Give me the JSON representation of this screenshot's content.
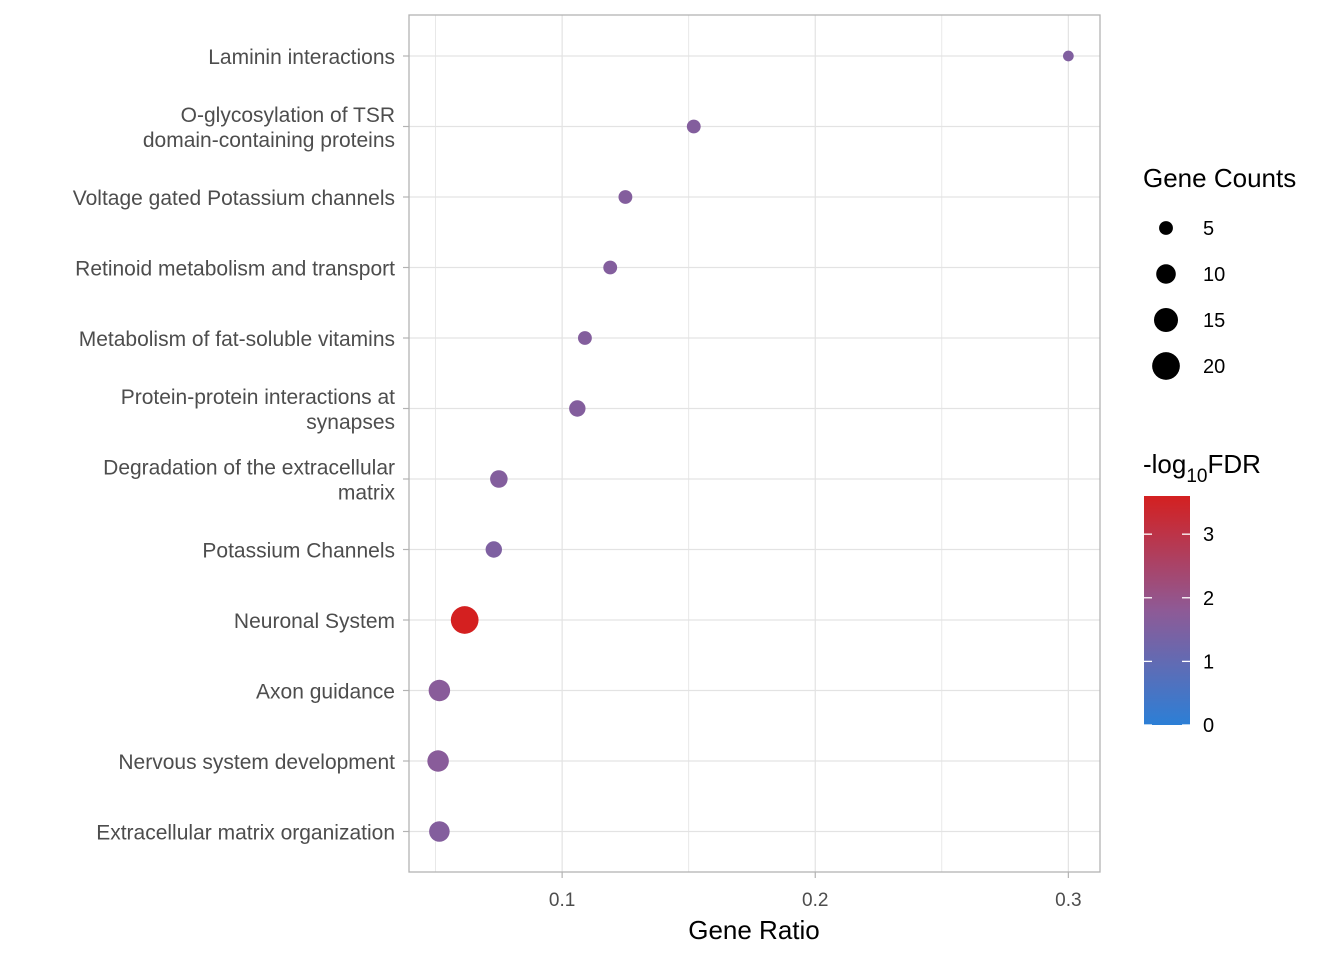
{
  "chart_data": {
    "type": "scatter",
    "subtype": "dot-plot",
    "xlabel": "Gene Ratio",
    "ylabel": "",
    "xlim": [
      0.0395,
      0.3125
    ],
    "x_ticks": [
      {
        "value": 0.1,
        "label": "0.1"
      },
      {
        "value": 0.2,
        "label": "0.2"
      },
      {
        "value": 0.3,
        "label": "0.3"
      }
    ],
    "x_minor_ticks": [
      0.05,
      0.15,
      0.25
    ],
    "grid": true,
    "categories": [
      {
        "lines": [
          "Laminin interactions"
        ],
        "gene_ratio": 0.3,
        "gene_count": 3,
        "neg_log10_fdr": 1.55
      },
      {
        "lines": [
          "O-glycosylation of TSR",
          "domain-containing proteins"
        ],
        "gene_ratio": 0.152,
        "gene_count": 5,
        "neg_log10_fdr": 1.6
      },
      {
        "lines": [
          "Voltage gated Potassium channels"
        ],
        "gene_ratio": 0.125,
        "gene_count": 5,
        "neg_log10_fdr": 1.6
      },
      {
        "lines": [
          "Retinoid metabolism and transport"
        ],
        "gene_ratio": 0.119,
        "gene_count": 5,
        "neg_log10_fdr": 1.6
      },
      {
        "lines": [
          "Metabolism of fat-soluble vitamins"
        ],
        "gene_ratio": 0.109,
        "gene_count": 5,
        "neg_log10_fdr": 1.6
      },
      {
        "lines": [
          "Protein-protein interactions at",
          "synapses"
        ],
        "gene_ratio": 0.106,
        "gene_count": 7,
        "neg_log10_fdr": 1.6
      },
      {
        "lines": [
          "Degradation of the extracellular",
          "matrix"
        ],
        "gene_ratio": 0.075,
        "gene_count": 8,
        "neg_log10_fdr": 1.6
      },
      {
        "lines": [
          "Potassium Channels"
        ],
        "gene_ratio": 0.073,
        "gene_count": 7,
        "neg_log10_fdr": 1.5
      },
      {
        "lines": [
          "Neuronal System"
        ],
        "gene_ratio": 0.0615,
        "gene_count": 20,
        "neg_log10_fdr": 3.6
      },
      {
        "lines": [
          "Axon guidance"
        ],
        "gene_ratio": 0.0515,
        "gene_count": 12,
        "neg_log10_fdr": 1.7
      },
      {
        "lines": [
          "Nervous system development"
        ],
        "gene_ratio": 0.051,
        "gene_count": 12,
        "neg_log10_fdr": 1.7
      },
      {
        "lines": [
          "Extracellular matrix organization"
        ],
        "gene_ratio": 0.0515,
        "gene_count": 11,
        "neg_log10_fdr": 1.6
      }
    ],
    "size_legend": {
      "title": "Gene Counts",
      "entries": [
        {
          "value": 5,
          "label": "5"
        },
        {
          "value": 10,
          "label": "10"
        },
        {
          "value": 15,
          "label": "15"
        },
        {
          "value": 20,
          "label": "20"
        }
      ]
    },
    "color_legend": {
      "title_prefix": "-log",
      "title_subscript": "10",
      "title_suffix": "FDR",
      "range": [
        0,
        3.6
      ],
      "ticks": [
        {
          "value": 0,
          "label": "0"
        },
        {
          "value": 1,
          "label": "1"
        },
        {
          "value": 2,
          "label": "2"
        },
        {
          "value": 3,
          "label": "3"
        }
      ],
      "color_low": "#2c7fd6",
      "color_mid": "#8e5a96",
      "color_high": "#d42020"
    },
    "colors": {
      "background": "#ffffff",
      "grid": "#e3e3e3",
      "panel_border": "#b3b3b3",
      "axis_text": "#4d4d4d",
      "title_text": "#000000"
    }
  }
}
